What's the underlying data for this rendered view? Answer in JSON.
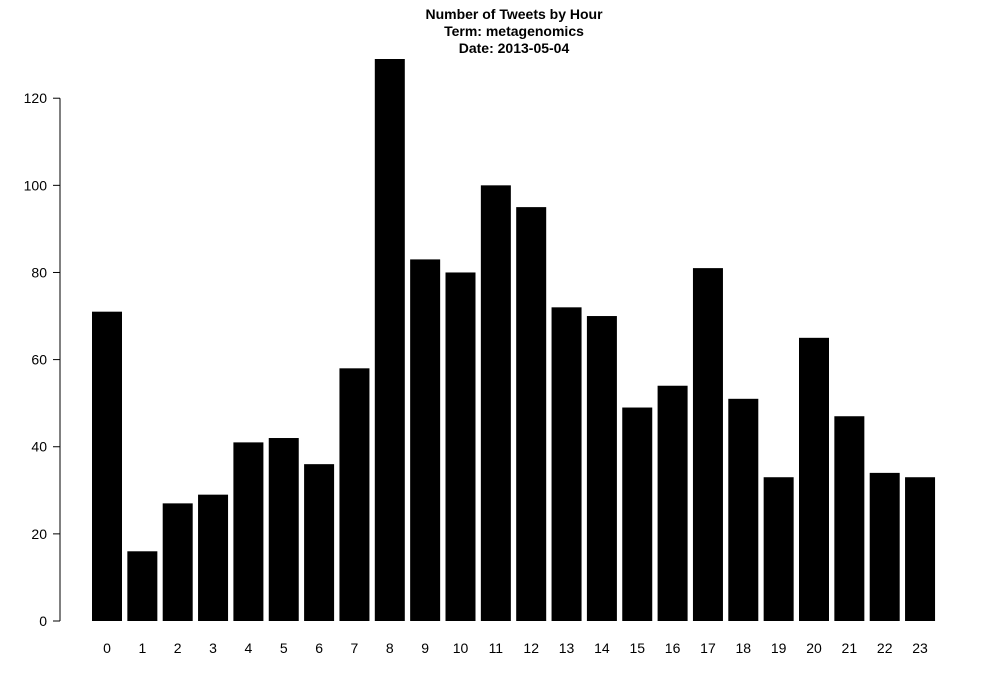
{
  "chart_data": {
    "type": "bar",
    "title": [
      "Number of Tweets by Hour",
      "Term: metagenomics",
      "Date: 2013-05-04"
    ],
    "xlabel": "",
    "ylabel": "",
    "categories": [
      "0",
      "1",
      "2",
      "3",
      "4",
      "5",
      "6",
      "7",
      "8",
      "9",
      "10",
      "11",
      "12",
      "13",
      "14",
      "15",
      "16",
      "17",
      "18",
      "19",
      "20",
      "21",
      "22",
      "23"
    ],
    "values": [
      71,
      16,
      27,
      29,
      41,
      42,
      36,
      58,
      129,
      83,
      80,
      100,
      95,
      72,
      70,
      49,
      54,
      81,
      51,
      33,
      65,
      47,
      34,
      33
    ],
    "ylim": [
      0,
      129
    ],
    "yticks": [
      0,
      20,
      40,
      60,
      80,
      100,
      120
    ],
    "grid": false,
    "legend": "none",
    "bar_color": "#000000"
  }
}
